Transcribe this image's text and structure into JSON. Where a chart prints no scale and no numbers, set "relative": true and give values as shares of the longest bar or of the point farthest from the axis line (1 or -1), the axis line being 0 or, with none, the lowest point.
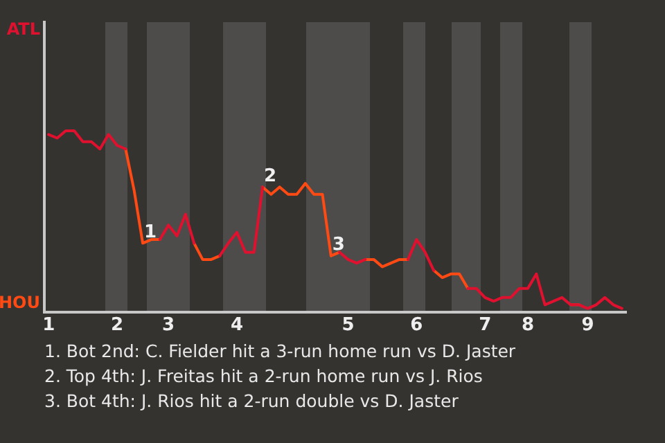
{
  "chart_data": {
    "type": "line",
    "categories": [
      "1",
      null,
      null,
      null,
      null,
      null,
      null,
      null,
      "2",
      null,
      null,
      null,
      null,
      null,
      "3",
      null,
      null,
      null,
      null,
      null,
      null,
      null,
      "4",
      null,
      null,
      null,
      null,
      null,
      null,
      null,
      null,
      null,
      null,
      null,
      null,
      "5",
      null,
      null,
      null,
      null,
      null,
      null,
      null,
      "6",
      null,
      null,
      null,
      null,
      null,
      null,
      null,
      "7",
      null,
      null,
      null,
      null,
      "8",
      null,
      null,
      null,
      null,
      null,
      null,
      "9",
      null,
      null,
      null,
      null
    ],
    "relative": true,
    "series": [
      {
        "color": "#e0102f",
        "values": [
          0.98,
          0.96,
          1,
          1,
          0.94,
          0.94,
          0.9,
          0.98,
          0.92,
          0.9,
          null,
          null,
          null,
          0.4,
          0.48,
          0.42,
          0.54,
          0.38,
          null,
          null,
          0.31,
          0.38,
          0.44,
          0.33,
          0.33,
          0.69,
          null,
          null,
          null,
          null,
          null,
          null,
          null,
          null,
          0.33,
          0.29,
          0.27,
          0.29,
          null,
          null,
          null,
          null,
          0.29,
          0.4,
          0.33,
          0.23,
          null,
          null,
          null,
          0.13,
          0.13,
          0.08,
          0.06,
          0.08,
          0.08,
          0.13,
          0.13,
          0.21,
          0.04,
          0.06,
          0.08,
          0.04,
          0.04,
          0.02,
          0.04,
          0.08,
          0.04,
          0.02
        ]
      },
      {
        "color": "#ff4a14",
        "values": [
          null,
          null,
          null,
          null,
          null,
          null,
          null,
          null,
          null,
          0.9,
          0.67,
          0.38,
          0.4,
          0.4,
          null,
          null,
          null,
          0.38,
          0.29,
          0.29,
          0.31,
          null,
          null,
          null,
          null,
          0.69,
          0.65,
          0.69,
          0.65,
          0.65,
          0.71,
          0.65,
          0.65,
          0.31,
          0.33,
          null,
          null,
          0.29,
          0.29,
          0.25,
          0.27,
          0.29,
          0.29,
          null,
          null,
          0.23,
          0.19,
          0.21,
          0.21,
          0.13,
          null,
          null,
          null,
          null,
          null,
          null,
          null,
          null,
          null,
          null,
          null,
          0.04,
          0.04,
          null,
          null,
          null,
          null,
          null
        ]
      }
    ],
    "legend": false,
    "marker": "none",
    "line_style": "solid",
    "annotations": [
      "ATL",
      "HOU",
      {
        "text": "1",
        "y": 0.38
      },
      {
        "text": "2",
        "y": 0.69
      },
      {
        "text": "3",
        "y": 0.31
      },
      "1. Bot 2nd: C. Fielder hit a 3-run home run vs D. Jaster",
      "2. Top 4th: J. Freitas hit a 2-run home run vs J. Rios",
      "3. Bot 4th: J. Rios hit a 2-run double vs D. Jaster"
    ]
  }
}
